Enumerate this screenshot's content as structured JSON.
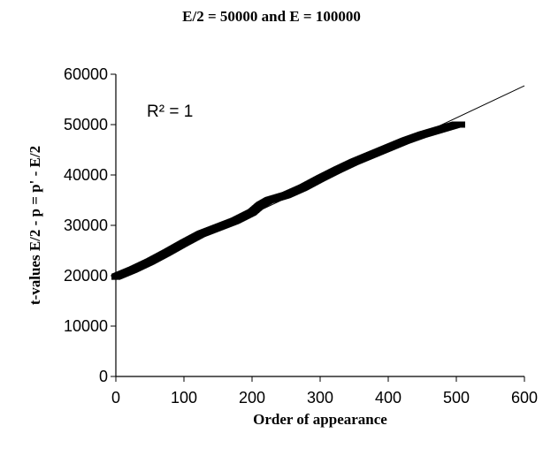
{
  "chart_data": {
    "type": "scatter",
    "title": "E/2 = 50000 and E = 100000",
    "xlabel": "Order of appearance",
    "ylabel": "t-values E/2 - p = p' - E/2",
    "xlim": [
      0,
      600
    ],
    "ylim": [
      0,
      60000
    ],
    "x_ticks": [
      "0",
      "100",
      "200",
      "300",
      "400",
      "500",
      "600"
    ],
    "y_ticks": [
      "0",
      "10000",
      "20000",
      "30000",
      "40000",
      "50000",
      "60000"
    ],
    "annotation": "R² = 1",
    "grid": false,
    "series": [
      {
        "values": [
          [
            0,
            19800
          ],
          [
            25,
            21200
          ],
          [
            50,
            22800
          ],
          [
            75,
            24600
          ],
          [
            100,
            26500
          ],
          [
            125,
            28300
          ],
          [
            150,
            29600
          ],
          [
            175,
            30900
          ],
          [
            200,
            32600
          ],
          [
            212,
            34000
          ],
          [
            225,
            35000
          ],
          [
            250,
            36000
          ],
          [
            275,
            37500
          ],
          [
            300,
            39300
          ],
          [
            325,
            41000
          ],
          [
            350,
            42600
          ],
          [
            375,
            44000
          ],
          [
            400,
            45400
          ],
          [
            425,
            46800
          ],
          [
            450,
            48000
          ],
          [
            475,
            49000
          ],
          [
            500,
            50000
          ]
        ]
      }
    ],
    "trendline": {
      "x": [
        0,
        600
      ],
      "y": [
        19500,
        57700
      ]
    }
  }
}
